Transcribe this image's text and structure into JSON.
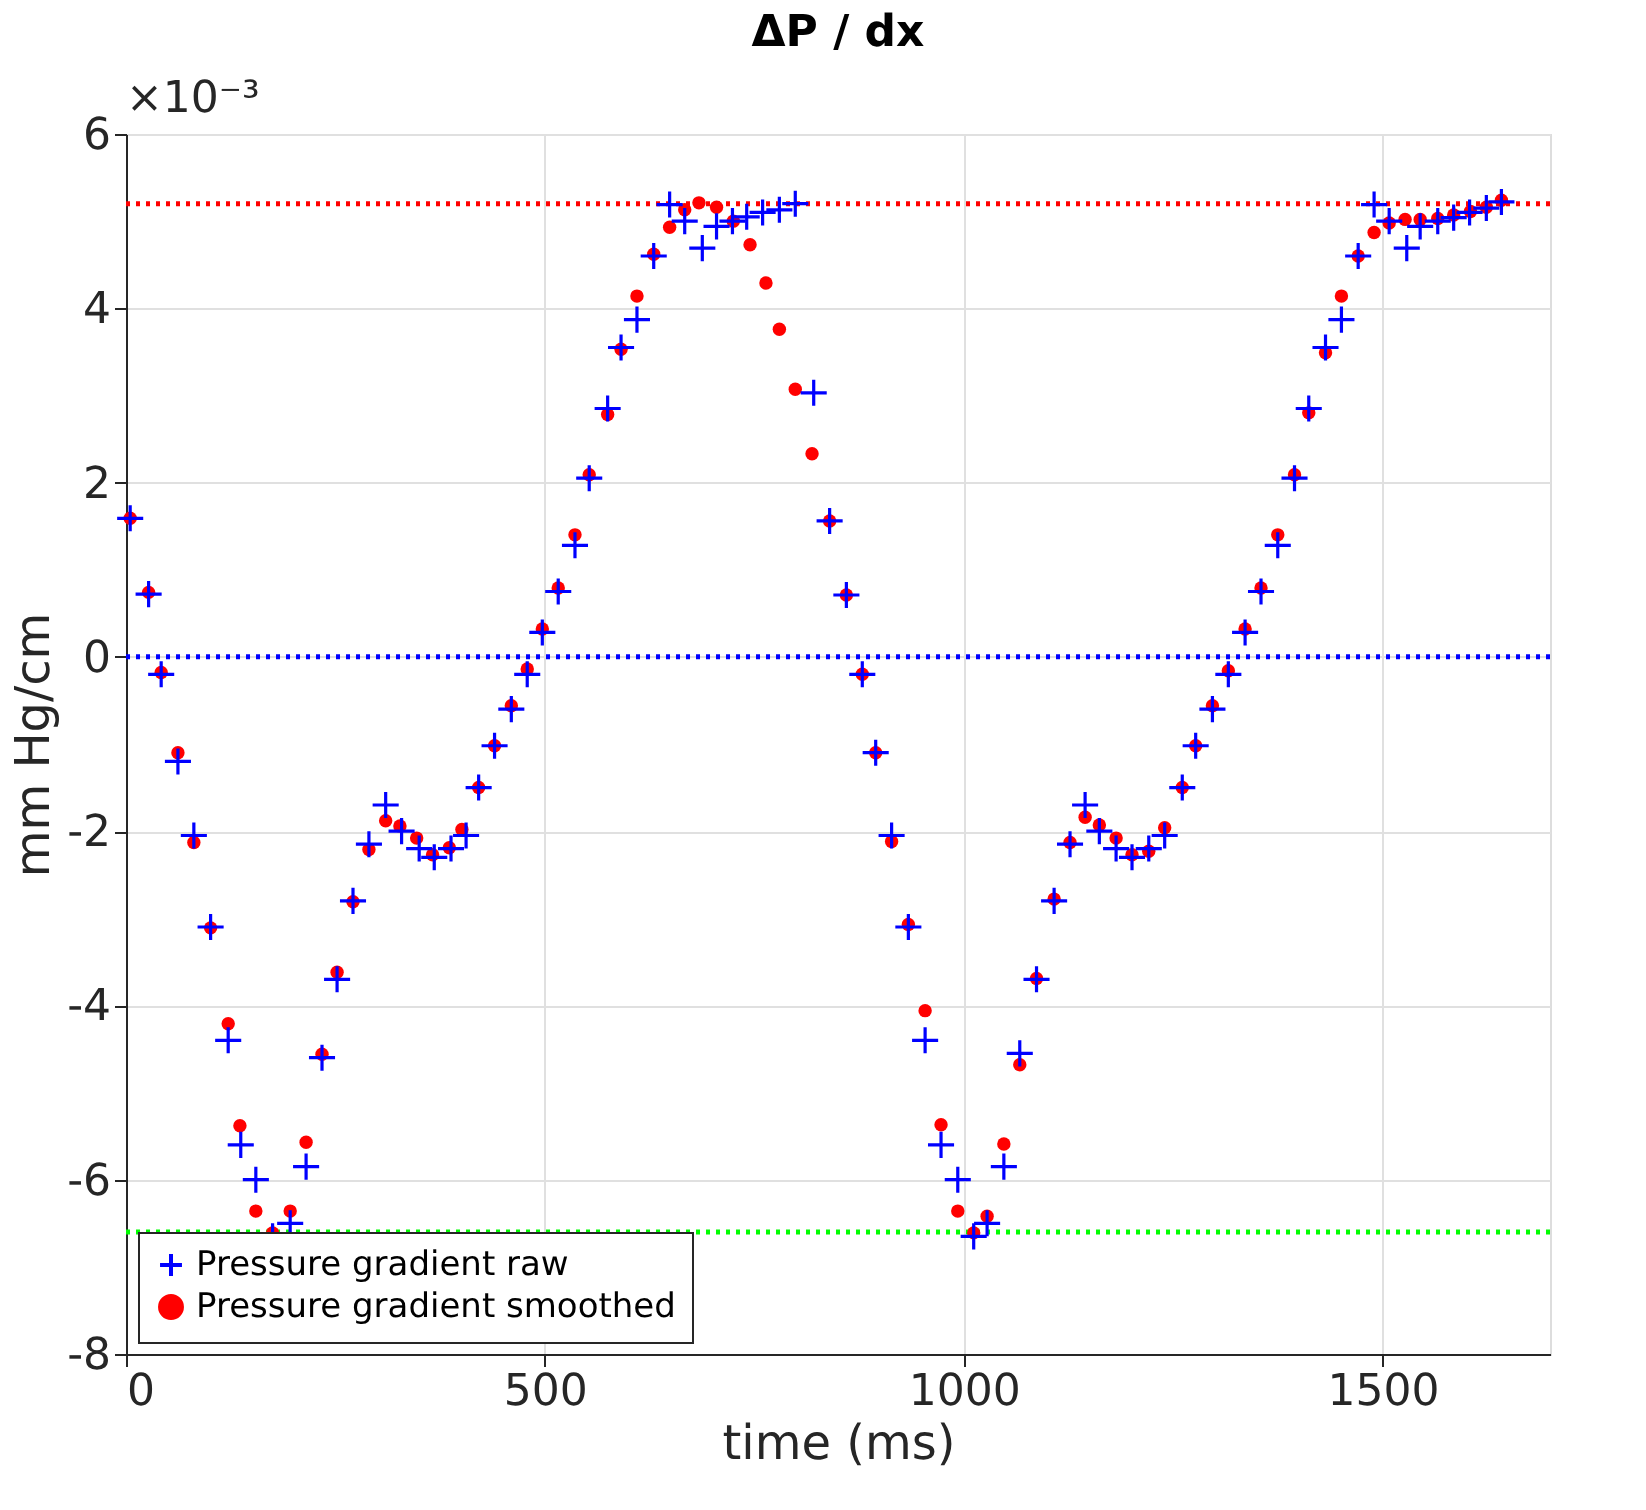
{
  "chart_data": {
    "type": "scatter",
    "title": "ΔP / dx",
    "xlabel": "time (ms)",
    "ylabel": "mm Hg/cm",
    "annotations": [
      "×10⁻³"
    ],
    "xlim": [
      0,
      1700
    ],
    "xticks": [
      0,
      500,
      1000,
      1500
    ],
    "ylim": [
      -8,
      6
    ],
    "yticks": [
      -8,
      -6,
      -4,
      -2,
      0,
      2,
      4,
      6
    ],
    "grid": true,
    "legend": "bottom left",
    "series": [
      {
        "name": "Pressure gradient raw",
        "color": "#0000ff",
        "marker": "cross",
        "x": [
          5,
          27,
          42,
          62,
          81,
          101,
          122,
          137,
          155,
          175,
          196,
          215,
          234,
          252,
          271,
          290,
          310,
          329,
          350,
          368,
          388,
          406,
          421,
          440,
          460,
          479,
          497,
          516,
          536,
          553,
          575,
          591,
          610,
          630,
          649,
          667,
          688,
          705,
          724,
          741,
          760,
          780,
          799,
          821,
          840,
          860,
          879,
          895,
          914,
          934,
          954,
          973,
          993,
          1012,
          1028,
          1048,
          1067,
          1087,
          1108,
          1127,
          1145,
          1162,
          1182,
          1201,
          1221,
          1240,
          1261,
          1277,
          1297,
          1316,
          1336,
          1355,
          1375,
          1395,
          1412,
          1432,
          1451,
          1471,
          1490,
          1508,
          1529,
          1545,
          1566,
          1585,
          1604,
          1624,
          1642
        ],
        "values": [
          1.59,
          0.72,
          -0.2,
          -1.2,
          -2.05,
          -3.1,
          -4.4,
          -5.6,
          -6.0,
          -6.65,
          -6.5,
          -5.85,
          -4.6,
          -3.7,
          -2.8,
          -2.15,
          -1.7,
          -2.0,
          -2.2,
          -2.3,
          -2.2,
          -2.05,
          -1.5,
          -1.02,
          -0.6,
          -0.2,
          0.28,
          0.75,
          1.28,
          2.05,
          2.85,
          3.55,
          3.87,
          4.6,
          5.19,
          5.0,
          4.69,
          4.94,
          5.0,
          5.05,
          5.1,
          5.13,
          5.2,
          3.03,
          1.56,
          0.71,
          -0.2,
          -1.1,
          -2.05,
          -3.1,
          -4.4,
          -5.6,
          -6.0,
          -6.65,
          -6.5,
          -5.85,
          -4.55,
          -3.7,
          -2.8,
          -2.15,
          -1.7,
          -2.0,
          -2.2,
          -2.3,
          -2.2,
          -2.05,
          -1.5,
          -1.02,
          -0.6,
          -0.2,
          0.28,
          0.75,
          1.28,
          2.05,
          2.85,
          3.55,
          3.87,
          4.6,
          5.19,
          5.0,
          4.69,
          4.94,
          5.0,
          5.04,
          5.1,
          5.15,
          5.22
        ]
      },
      {
        "name": "Pressure gradient smoothed",
        "color": "#ff0000",
        "marker": "circle",
        "x": [
          5,
          27,
          42,
          62,
          81,
          101,
          122,
          136,
          155,
          175,
          196,
          215,
          234,
          252,
          271,
          290,
          310,
          327,
          347,
          366,
          386,
          401,
          421,
          440,
          460,
          479,
          497,
          516,
          536,
          553,
          575,
          591,
          610,
          630,
          649,
          667,
          684,
          705,
          725,
          745,
          764,
          780,
          799,
          819,
          840,
          860,
          879,
          895,
          914,
          934,
          954,
          973,
          993,
          1012,
          1028,
          1048,
          1067,
          1087,
          1108,
          1127,
          1145,
          1162,
          1182,
          1201,
          1221,
          1240,
          1261,
          1277,
          1297,
          1316,
          1336,
          1355,
          1375,
          1395,
          1412,
          1432,
          1451,
          1471,
          1490,
          1508,
          1527,
          1545,
          1566,
          1585,
          1605,
          1624,
          1642
        ],
        "values": [
          1.59,
          0.74,
          -0.18,
          -1.1,
          -2.13,
          -3.11,
          -4.21,
          -5.38,
          -6.36,
          -6.61,
          -6.36,
          -5.57,
          -4.56,
          -3.62,
          -2.81,
          -2.21,
          -1.88,
          -1.94,
          -2.08,
          -2.27,
          -2.19,
          -1.98,
          -1.5,
          -1.02,
          -0.56,
          -0.14,
          0.32,
          0.79,
          1.4,
          2.09,
          2.78,
          3.53,
          4.14,
          4.62,
          4.93,
          5.13,
          5.21,
          5.16,
          5.0,
          4.73,
          4.29,
          3.76,
          3.07,
          2.33,
          1.56,
          0.71,
          -0.2,
          -1.1,
          -2.12,
          -3.07,
          -4.06,
          -5.37,
          -6.36,
          -6.61,
          -6.42,
          -5.59,
          -4.68,
          -3.69,
          -2.78,
          -2.13,
          -1.84,
          -1.93,
          -2.08,
          -2.27,
          -2.23,
          -1.96,
          -1.5,
          -1.02,
          -0.56,
          -0.16,
          0.32,
          0.79,
          1.4,
          2.09,
          2.8,
          3.49,
          4.14,
          4.6,
          4.87,
          4.98,
          5.02,
          5.02,
          5.03,
          5.07,
          5.11,
          5.16,
          5.24
        ]
      }
    ],
    "ref_lines": [
      {
        "axis": "y",
        "value": 5.2,
        "color": "#ff0000",
        "line_style": "dotted"
      },
      {
        "axis": "y",
        "value": 0,
        "color": "#0000ff",
        "line_style": "dotted"
      },
      {
        "axis": "y",
        "value": -6.6,
        "color": "#00ff00",
        "line_style": "dotted"
      }
    ]
  }
}
